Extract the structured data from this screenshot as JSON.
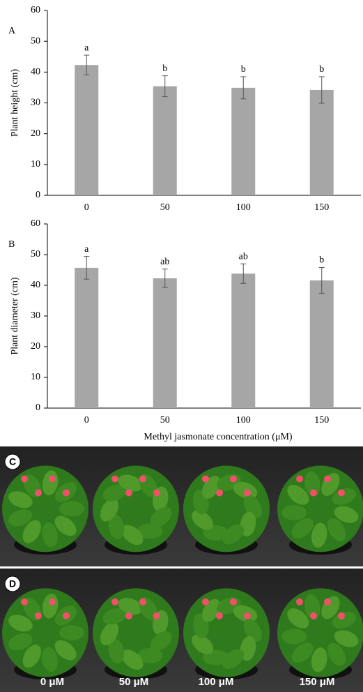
{
  "chart_data": [
    {
      "type": "bar",
      "panel": "A",
      "y_label": "Plant height (cm)",
      "categories": [
        "0",
        "50",
        "100",
        "150"
      ],
      "values": [
        42.3,
        35.4,
        34.9,
        34.2
      ],
      "errors": [
        3.2,
        3.4,
        3.6,
        4.3
      ],
      "significance_labels": [
        "a",
        "b",
        "b",
        "b"
      ],
      "color": "#a6a6a6",
      "ylim": [
        0,
        60
      ],
      "yticks": [
        0,
        10,
        20,
        30,
        40,
        50,
        60
      ]
    },
    {
      "type": "bar",
      "panel": "B",
      "y_label": "Plant diameter (cm)",
      "x_label": "Methyl jasmonate concentration (μM)",
      "categories": [
        "0",
        "50",
        "100",
        "150"
      ],
      "values": [
        45.7,
        42.3,
        43.8,
        41.6
      ],
      "errors": [
        3.7,
        3.0,
        3.2,
        4.2
      ],
      "significance_labels": [
        "a",
        "ab",
        "ab",
        "b"
      ],
      "color": "#a6a6a6",
      "ylim": [
        0,
        60
      ],
      "yticks": [
        0,
        10,
        20,
        30,
        40,
        50,
        60
      ]
    }
  ],
  "photo_panels": [
    {
      "label": "C"
    },
    {
      "label": "D",
      "captions": [
        "0 μM",
        "50 μM",
        "100 μM",
        "150 μM"
      ]
    }
  ]
}
